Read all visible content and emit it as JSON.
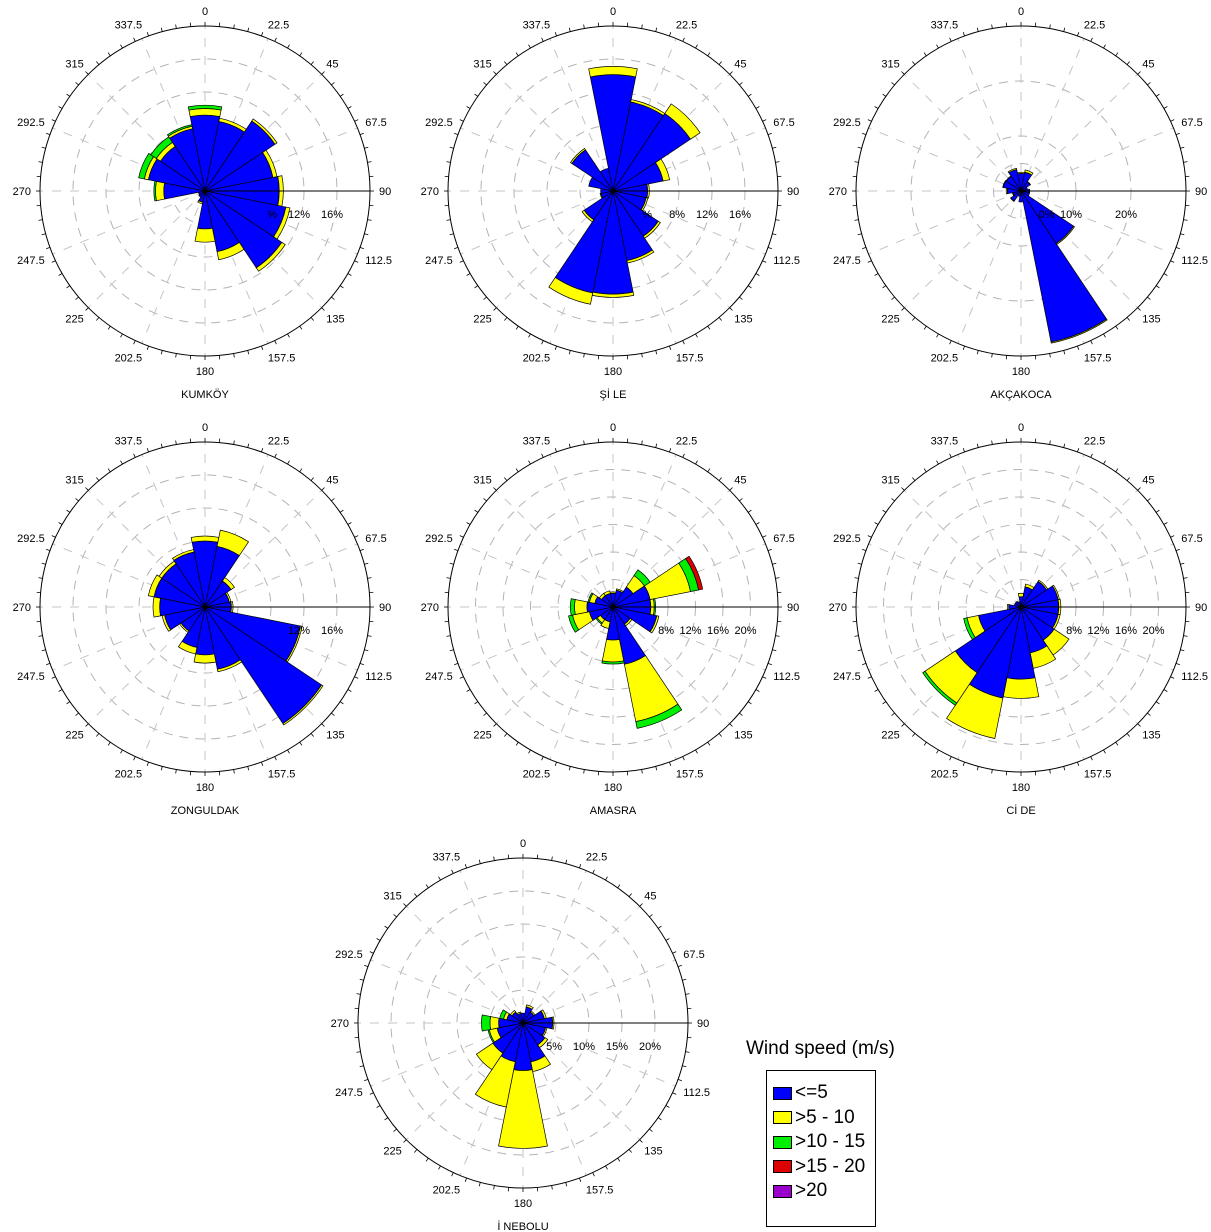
{
  "legend": {
    "title": "Wind speed (m/s)",
    "items": [
      {
        "label": "<=5",
        "color": "#0000ff"
      },
      {
        "label": ">5 - 10",
        "color": "#ffff00"
      },
      {
        "label": ">10 - 15",
        "color": "#00ee00"
      },
      {
        "label": ">15 - 20",
        "color": "#dd0000"
      },
      {
        "label": ">20",
        "color": "#9900cc"
      }
    ]
  },
  "chart_data": [
    {
      "type": "windrose",
      "title": "KUMKÖY",
      "direction_labels": [
        "0",
        "22.5",
        "45",
        "67.5",
        "90",
        "112.5",
        "135",
        "157.5",
        "180",
        "202.5",
        "225",
        "247.5",
        "270",
        "292.5",
        "315",
        "337.5"
      ],
      "radial_ticks": [
        4,
        8,
        12,
        16
      ],
      "radial_max": 20,
      "radial_tick_labels": [
        "%",
        "12%",
        "16%"
      ],
      "series_names": [
        "<=5",
        ">5 - 10",
        ">10 - 15",
        ">15 - 20",
        ">20"
      ],
      "directions": [
        0,
        22.5,
        45,
        67.5,
        90,
        112.5,
        135,
        157.5,
        180,
        202.5,
        225,
        247.5,
        270,
        292.5,
        315,
        337.5
      ],
      "frequencies": [
        [
          9.2,
          0.8,
          0.4,
          0,
          0
        ],
        [
          8.6,
          0.4,
          0,
          0,
          0
        ],
        [
          10.2,
          0.3,
          0,
          0,
          0
        ],
        [
          8.4,
          0.5,
          0,
          0,
          0
        ],
        [
          9.0,
          0.5,
          0,
          0,
          0
        ],
        [
          10.0,
          0.5,
          0,
          0,
          0
        ],
        [
          11.2,
          0.5,
          0,
          0,
          0
        ],
        [
          7.5,
          1.0,
          0,
          0,
          0
        ],
        [
          4.6,
          1.6,
          0,
          0,
          0
        ],
        [
          1.4,
          0.2,
          0,
          0,
          0
        ],
        [
          0.9,
          0,
          0,
          0,
          0
        ],
        [
          0.8,
          0,
          0,
          0,
          0
        ],
        [
          5.0,
          1.0,
          0.2,
          0,
          0
        ],
        [
          7.0,
          0.5,
          0.7,
          0,
          0
        ],
        [
          6.5,
          0.6,
          0.8,
          0,
          0
        ],
        [
          7.7,
          0.3,
          0.2,
          0,
          0
        ]
      ]
    },
    {
      "type": "windrose",
      "title": "Şİ LE",
      "direction_labels": [
        "0",
        "22.5",
        "45",
        "67.5",
        "90",
        "112.5",
        "135",
        "157.5",
        "180",
        "202.5",
        "225",
        "247.5",
        "270",
        "292.5",
        "315",
        "337.5"
      ],
      "radial_ticks": [
        4,
        8,
        12,
        16
      ],
      "radial_max": 20,
      "radial_tick_labels": [
        "%",
        "8%",
        "12%",
        "16%"
      ],
      "series_names": [
        "<=5",
        ">5 - 10",
        ">10 - 15",
        ">15 - 20",
        ">20"
      ],
      "directions": [
        0,
        22.5,
        45,
        67.5,
        90,
        112.5,
        135,
        157.5,
        180,
        202.5,
        225,
        247.5,
        270,
        292.5,
        315,
        337.5
      ],
      "frequencies": [
        [
          14.1,
          1.0,
          0,
          0,
          0
        ],
        [
          11.0,
          0.3,
          0,
          0,
          0
        ],
        [
          11.3,
          1.4,
          0,
          0,
          0
        ],
        [
          6.2,
          0.8,
          0,
          0,
          0
        ],
        [
          4.2,
          0.2,
          0,
          0,
          0
        ],
        [
          4.1,
          0.2,
          0,
          0,
          0
        ],
        [
          6.6,
          0.3,
          0,
          0,
          0
        ],
        [
          8.6,
          0.3,
          0,
          0,
          0
        ],
        [
          12.5,
          0.4,
          0,
          0,
          0
        ],
        [
          12.6,
          1.4,
          0,
          0,
          0
        ],
        [
          4.2,
          0.3,
          0,
          0,
          0
        ],
        [
          1.5,
          0.1,
          0,
          0,
          0
        ],
        [
          1.5,
          0,
          0,
          0,
          0
        ],
        [
          3.0,
          0,
          0,
          0,
          0
        ],
        [
          6.0,
          0.2,
          0,
          0,
          0
        ],
        [
          2.8,
          0,
          0,
          0,
          0
        ]
      ]
    },
    {
      "type": "windrose",
      "title": "AKÇAKOCA",
      "direction_labels": [
        "0",
        "22.5",
        "45",
        "67.5",
        "90",
        "112.5",
        "135",
        "157.5",
        "180",
        "202.5",
        "225",
        "247.5",
        "270",
        "292.5",
        "315",
        "337.5"
      ],
      "radial_ticks": [
        5,
        10,
        20
      ],
      "radial_max": 30,
      "radial_tick_labels": [
        "0%",
        "10%",
        "20%"
      ],
      "series_names": [
        "<=5",
        ">5 - 10",
        ">10 - 15",
        ">15 - 20",
        ">20"
      ],
      "directions": [
        0,
        22.5,
        45,
        67.5,
        90,
        112.5,
        135,
        157.5,
        180,
        202.5,
        225,
        247.5,
        270,
        292.5,
        315,
        337.5
      ],
      "frequencies": [
        [
          3.2,
          0.2,
          0,
          0,
          0
        ],
        [
          3.5,
          0.4,
          0,
          0,
          0
        ],
        [
          2.0,
          0.1,
          0,
          0,
          0
        ],
        [
          1.2,
          0,
          0,
          0,
          0
        ],
        [
          1.6,
          0,
          0,
          0,
          0
        ],
        [
          1.6,
          0,
          0,
          0,
          0
        ],
        [
          11.5,
          0.2,
          0,
          0,
          0
        ],
        [
          28.0,
          0.2,
          0,
          0,
          0
        ],
        [
          2.0,
          0,
          0,
          0,
          0
        ],
        [
          1.0,
          0,
          0,
          0,
          0
        ],
        [
          2.2,
          0.1,
          0,
          0,
          0
        ],
        [
          1.5,
          0.1,
          0,
          0,
          0
        ],
        [
          2.5,
          0.2,
          0,
          0,
          0
        ],
        [
          3.3,
          0.1,
          0,
          0,
          0
        ],
        [
          3.2,
          0.1,
          0,
          0,
          0
        ],
        [
          4.0,
          0.2,
          0,
          0,
          0
        ]
      ]
    },
    {
      "type": "windrose",
      "title": "ZONGULDAK",
      "direction_labels": [
        "0",
        "22.5",
        "45",
        "67.5",
        "90",
        "112.5",
        "135",
        "157.5",
        "180",
        "202.5",
        "225",
        "247.5",
        "270",
        "292.5",
        "315",
        "337.5"
      ],
      "radial_ticks": [
        4,
        8,
        12,
        16
      ],
      "radial_max": 20,
      "radial_tick_labels": [
        "12%",
        "16%"
      ],
      "series_names": [
        "<=5",
        ">5 - 10",
        ">10 - 15",
        ">15 - 20",
        ">20"
      ],
      "directions": [
        0,
        22.5,
        45,
        67.5,
        90,
        112.5,
        135,
        157.5,
        180,
        202.5,
        225,
        247.5,
        270,
        292.5,
        315,
        337.5
      ],
      "frequencies": [
        [
          8.0,
          0.6,
          0,
          0,
          0
        ],
        [
          7.5,
          2.0,
          0,
          0,
          0
        ],
        [
          3.8,
          0.5,
          0,
          0,
          0
        ],
        [
          3.0,
          0.2,
          0,
          0,
          0
        ],
        [
          3.2,
          0.2,
          0,
          0,
          0
        ],
        [
          11.8,
          0.2,
          0,
          0,
          0
        ],
        [
          17.0,
          0.2,
          0,
          0,
          0
        ],
        [
          7.7,
          0.3,
          0,
          0,
          0
        ],
        [
          5.8,
          1.0,
          0,
          0,
          0
        ],
        [
          5.0,
          0.8,
          0,
          0,
          0
        ],
        [
          3.5,
          0.2,
          0,
          0,
          0
        ],
        [
          5.0,
          0.3,
          0,
          0,
          0
        ],
        [
          5.5,
          0.8,
          0,
          0,
          0
        ],
        [
          6.3,
          0.7,
          0,
          0,
          0
        ],
        [
          6.3,
          0.4,
          0,
          0,
          0
        ],
        [
          6.8,
          0.3,
          0,
          0,
          0
        ]
      ]
    },
    {
      "type": "windrose",
      "title": "AMASRA",
      "direction_labels": [
        "0",
        "22.5",
        "45",
        "67.5",
        "90",
        "112.5",
        "135",
        "157.5",
        "180",
        "202.5",
        "225",
        "247.5",
        "270",
        "292.5",
        "315",
        "337.5"
      ],
      "radial_ticks": [
        4,
        8,
        12,
        16,
        20
      ],
      "radial_max": 24,
      "radial_tick_labels": [
        "8%",
        "12%",
        "16%",
        "20%"
      ],
      "series_names": [
        "<=5",
        ">5 - 10",
        ">10 - 15",
        ">15 - 20",
        ">20"
      ],
      "directions": [
        0,
        22.5,
        45,
        67.5,
        90,
        112.5,
        135,
        157.5,
        180,
        202.5,
        225,
        247.5,
        270,
        292.5,
        315,
        337.5
      ],
      "frequencies": [
        [
          2.0,
          0.2,
          0,
          0,
          0
        ],
        [
          2.5,
          0.2,
          0,
          0,
          0
        ],
        [
          3.5,
          2.0,
          1.0,
          0,
          0
        ],
        [
          5.5,
          6.0,
          1.2,
          0.6,
          0
        ],
        [
          5.5,
          0.5,
          0.2,
          0,
          0
        ],
        [
          6.5,
          0.3,
          0,
          0,
          0
        ],
        [
          3.0,
          0.3,
          0,
          0,
          0
        ],
        [
          8.5,
          8.5,
          1.0,
          0,
          0
        ],
        [
          4.8,
          3.2,
          0.3,
          0,
          0
        ],
        [
          2.2,
          1.0,
          0,
          0,
          0
        ],
        [
          2.2,
          0.6,
          0.2,
          0,
          0
        ],
        [
          3.5,
          2.5,
          0.6,
          0,
          0
        ],
        [
          3.8,
          1.8,
          0.6,
          0,
          0
        ],
        [
          2.7,
          0.8,
          0.2,
          0,
          0
        ],
        [
          2.0,
          0.4,
          0,
          0,
          0
        ],
        [
          2.0,
          0.4,
          0,
          0,
          0
        ]
      ]
    },
    {
      "type": "windrose",
      "title": "Cİ DE",
      "direction_labels": [
        "0",
        "22.5",
        "45",
        "67.5",
        "90",
        "112.5",
        "135",
        "157.5",
        "180",
        "202.5",
        "225",
        "247.5",
        "270",
        "292.5",
        "315",
        "337.5"
      ],
      "radial_ticks": [
        4,
        8,
        12,
        16,
        20
      ],
      "radial_max": 24,
      "radial_tick_labels": [
        "8%",
        "12%",
        "16%",
        "20%"
      ],
      "series_names": [
        "<=5",
        ">5 - 10",
        ">10 - 15",
        ">15 - 20",
        ">20"
      ],
      "directions": [
        0,
        22.5,
        45,
        67.5,
        90,
        112.5,
        135,
        157.5,
        180,
        202.5,
        225,
        247.5,
        270,
        292.5,
        315,
        337.5
      ],
      "frequencies": [
        [
          1.5,
          0.5,
          0,
          0,
          0
        ],
        [
          3.0,
          0.4,
          0,
          0,
          0
        ],
        [
          4.5,
          0.2,
          0,
          0,
          0
        ],
        [
          5.5,
          0.2,
          0,
          0,
          0
        ],
        [
          5.5,
          0.3,
          0,
          0,
          0
        ],
        [
          5.5,
          0.3,
          0,
          0,
          0
        ],
        [
          5.8,
          2.6,
          0,
          0,
          0
        ],
        [
          6.8,
          2.3,
          0,
          0,
          0
        ],
        [
          10.5,
          2.8,
          0,
          0,
          0
        ],
        [
          13.5,
          6.0,
          0,
          0,
          0
        ],
        [
          11.5,
          5.3,
          0.4,
          0,
          0
        ],
        [
          6.3,
          1.7,
          0.5,
          0,
          0
        ],
        [
          1.8,
          0.2,
          0,
          0,
          0
        ],
        [
          1.0,
          0,
          0,
          0,
          0
        ],
        [
          1.0,
          0,
          0,
          0,
          0
        ],
        [
          0.8,
          0,
          0,
          0,
          0
        ]
      ]
    },
    {
      "type": "windrose",
      "title": "İ NEBOLU",
      "direction_labels": [
        "0",
        "22.5",
        "45",
        "67.5",
        "90",
        "112.5",
        "135",
        "157.5",
        "180",
        "202.5",
        "225",
        "247.5",
        "270",
        "292.5",
        "315",
        "337.5"
      ],
      "radial_ticks": [
        5,
        10,
        15,
        20
      ],
      "radial_max": 25,
      "radial_tick_labels": [
        "5%",
        "10%",
        "15%",
        "20%"
      ],
      "series_names": [
        "<=5",
        ">5 - 10",
        ">10 - 15",
        ">15 - 20",
        ">20"
      ],
      "directions": [
        0,
        22.5,
        45,
        67.5,
        90,
        112.5,
        135,
        157.5,
        180,
        202.5,
        225,
        247.5,
        270,
        292.5,
        315,
        337.5
      ],
      "frequencies": [
        [
          1.5,
          0,
          0,
          0,
          0
        ],
        [
          2.5,
          0.3,
          0,
          0,
          0
        ],
        [
          2.0,
          0.2,
          0,
          0,
          0
        ],
        [
          3.3,
          0.3,
          0,
          0,
          0
        ],
        [
          4.5,
          0.2,
          0,
          0,
          0
        ],
        [
          3.5,
          0.2,
          0,
          0,
          0
        ],
        [
          4.0,
          0.5,
          0,
          0,
          0
        ],
        [
          6.0,
          1.5,
          0,
          0,
          0
        ],
        [
          7.2,
          11.8,
          0,
          0,
          0
        ],
        [
          6.0,
          7.0,
          0,
          0,
          0
        ],
        [
          5.5,
          3.0,
          0,
          0,
          0
        ],
        [
          4.0,
          1.2,
          0.2,
          0,
          0
        ],
        [
          3.7,
          1.3,
          1.3,
          0,
          0
        ],
        [
          2.5,
          0.5,
          0.6,
          0,
          0
        ],
        [
          2.0,
          0.3,
          0,
          0,
          0
        ],
        [
          1.5,
          0.2,
          0,
          0,
          0
        ]
      ]
    }
  ]
}
